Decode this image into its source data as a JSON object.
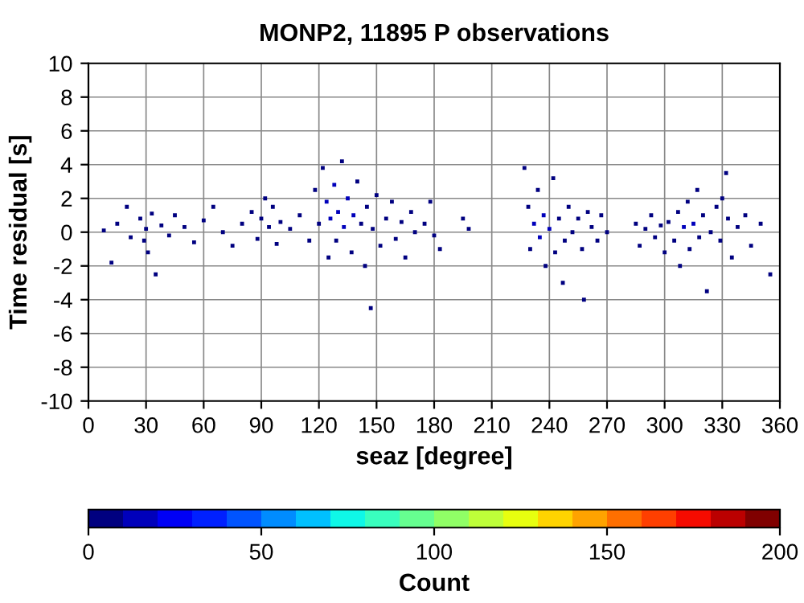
{
  "chart_data": {
    "type": "scatter",
    "title": "MONP2, 11895 P observations",
    "xlabel": "seaz [degree]",
    "ylabel": "Time residual [s]",
    "clabel": "Count",
    "x": [
      8,
      12,
      15,
      20,
      22,
      27,
      29,
      30,
      31,
      33,
      35,
      38,
      42,
      45,
      50,
      55,
      60,
      65,
      70,
      75,
      80,
      85,
      88,
      90,
      92,
      94,
      96,
      98,
      100,
      105,
      110,
      115,
      118,
      120,
      122,
      124,
      125,
      126,
      128,
      129,
      130,
      132,
      133,
      135,
      137,
      138,
      140,
      142,
      144,
      145,
      147,
      148,
      150,
      152,
      155,
      158,
      160,
      163,
      165,
      168,
      170,
      175,
      178,
      180,
      183,
      195,
      198,
      227,
      229,
      230,
      232,
      234,
      235,
      237,
      238,
      240,
      242,
      243,
      245,
      247,
      248,
      250,
      252,
      255,
      257,
      258,
      260,
      262,
      265,
      267,
      270,
      285,
      287,
      290,
      293,
      295,
      298,
      300,
      302,
      305,
      307,
      308,
      310,
      312,
      313,
      315,
      317,
      318,
      320,
      322,
      324,
      327,
      329,
      330,
      332,
      333,
      335,
      338,
      342,
      345,
      350,
      355
    ],
    "values": [
      0.1,
      -1.8,
      0.5,
      1.5,
      -0.3,
      0.8,
      -0.5,
      0.2,
      -1.2,
      1.1,
      -2.5,
      0.4,
      -0.2,
      1.0,
      0.3,
      -0.6,
      0.7,
      1.5,
      0.0,
      -0.8,
      0.5,
      1.2,
      -0.4,
      0.8,
      2.0,
      0.3,
      1.5,
      -0.7,
      0.6,
      0.2,
      1.0,
      -0.5,
      2.5,
      0.5,
      3.8,
      1.8,
      -1.5,
      0.8,
      2.8,
      -0.5,
      1.2,
      4.2,
      0.3,
      2.0,
      -1.2,
      1.0,
      3.0,
      0.5,
      -2.0,
      1.5,
      -4.5,
      0.2,
      2.2,
      -0.8,
      0.8,
      1.8,
      -0.4,
      0.6,
      -1.5,
      1.2,
      0.0,
      0.5,
      1.8,
      -0.2,
      -1.0,
      0.8,
      0.2,
      3.8,
      1.5,
      -1.0,
      0.5,
      2.5,
      -0.3,
      1.0,
      -2.0,
      0.2,
      3.2,
      -1.2,
      0.8,
      -3.0,
      -0.5,
      1.5,
      0.0,
      0.8,
      -1.0,
      -4.0,
      1.2,
      0.3,
      -0.5,
      1.0,
      0.0,
      0.5,
      -0.8,
      0.2,
      1.0,
      -0.3,
      0.4,
      -1.2,
      0.6,
      -0.5,
      1.2,
      -2.0,
      0.3,
      1.8,
      -1.0,
      0.5,
      2.5,
      -0.3,
      1.0,
      -3.5,
      0.0,
      1.5,
      -0.5,
      2.0,
      3.5,
      0.8,
      -1.5,
      0.3,
      1.0,
      -0.8,
      0.5,
      -2.5
    ],
    "cvalues": [
      1,
      1,
      1,
      1,
      1,
      2,
      3,
      4,
      3,
      2,
      1,
      2,
      1,
      1,
      1,
      1,
      1,
      1,
      1,
      1,
      1,
      2,
      3,
      5,
      4,
      6,
      5,
      3,
      2,
      1,
      1,
      2,
      4,
      8,
      3,
      12,
      5,
      15,
      10,
      9,
      18,
      3,
      14,
      12,
      6,
      10,
      5,
      8,
      3,
      6,
      1,
      5,
      3,
      3,
      4,
      2,
      3,
      3,
      1,
      2,
      2,
      1,
      1,
      1,
      1,
      1,
      1,
      2,
      6,
      5,
      12,
      8,
      15,
      14,
      6,
      12,
      4,
      8,
      9,
      2,
      6,
      5,
      6,
      5,
      4,
      1,
      4,
      5,
      3,
      3,
      2,
      2,
      3,
      5,
      4,
      6,
      5,
      3,
      6,
      8,
      7,
      3,
      12,
      6,
      8,
      10,
      3,
      7,
      5,
      1,
      4,
      3,
      3,
      3,
      2,
      4,
      2,
      2,
      1,
      1,
      1,
      1
    ],
    "xlim": [
      0,
      360
    ],
    "xticks": [
      0,
      30,
      60,
      90,
      120,
      150,
      180,
      210,
      240,
      270,
      300,
      330,
      360
    ],
    "ylim": [
      -10,
      10
    ],
    "yticks": [
      -10,
      -8,
      -6,
      -4,
      -2,
      0,
      2,
      4,
      6,
      8,
      10
    ],
    "clim": [
      0,
      200
    ],
    "cticks": [
      0,
      50,
      100,
      150,
      200
    ],
    "grid": true,
    "marker": "square"
  }
}
